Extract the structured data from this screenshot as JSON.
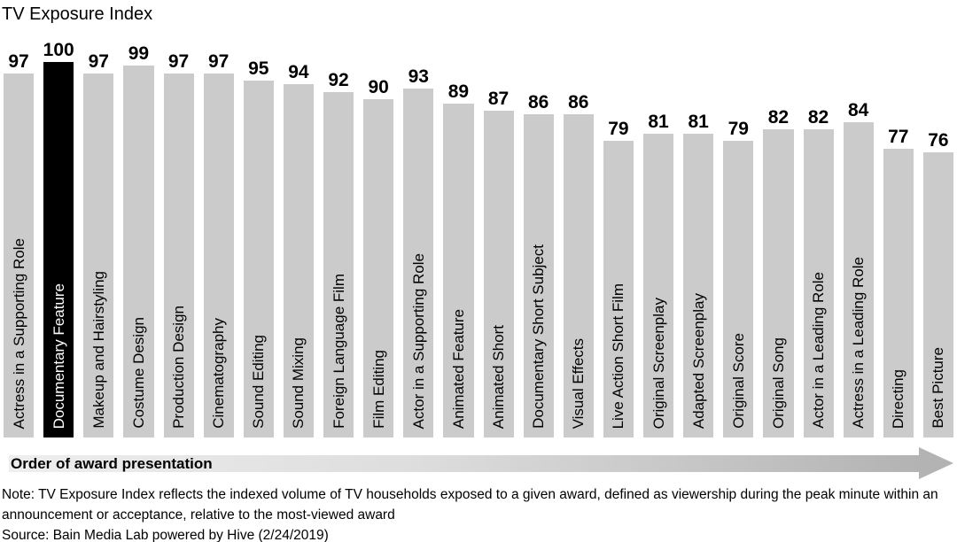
{
  "title": "TV Exposure Index",
  "order_label": "Order of award presentation",
  "note_line1": "Note: TV Exposure Index reflects the indexed volume of TV households exposed to a given award, defined as viewership during the peak minute within an",
  "note_line2": "announcement or acceptance, relative to the most-viewed award",
  "source_line": "Source: Bain Media Lab powered by Hive (2/24/2019)",
  "colors": {
    "bar": "#cbcbcb",
    "highlight_bar": "#000000",
    "highlight_label_text": "#ffffff",
    "arrow_gradient_start": "#eeeeee",
    "arrow_gradient_end": "#b3b3b3",
    "text": "#000000"
  },
  "chart_data": {
    "type": "bar",
    "title": "TV Exposure Index",
    "xlabel": "Order of award presentation",
    "ylabel": "",
    "ylim": [
      0,
      100
    ],
    "grid": false,
    "value_labels_shown": true,
    "category_labels_rotated_90": true,
    "highlight_index": 1,
    "categories": [
      "Actress in a Supporting Role",
      "Documentary Feature",
      "Makeup and Hairstyling",
      "Costume Design",
      "Production Design",
      "Cinematography",
      "Sound Editing",
      "Sound Mixing",
      "Foreign Language Film",
      "Film Editing",
      "Actor in a Supporting Role",
      "Animated Feature",
      "Animated Short",
      "Documentary Short Subject",
      "Visual Effects",
      "Live Action Short Film",
      "Original Screenplay",
      "Adapted Screenplay",
      "Original Score",
      "Original Song",
      "Actor in a Leading Role",
      "Actress in a Leading Role",
      "Directing",
      "Best Picture"
    ],
    "values": [
      97,
      100,
      97,
      99,
      97,
      97,
      95,
      94,
      92,
      90,
      93,
      89,
      87,
      86,
      86,
      79,
      81,
      81,
      79,
      82,
      82,
      84,
      77,
      76
    ]
  }
}
